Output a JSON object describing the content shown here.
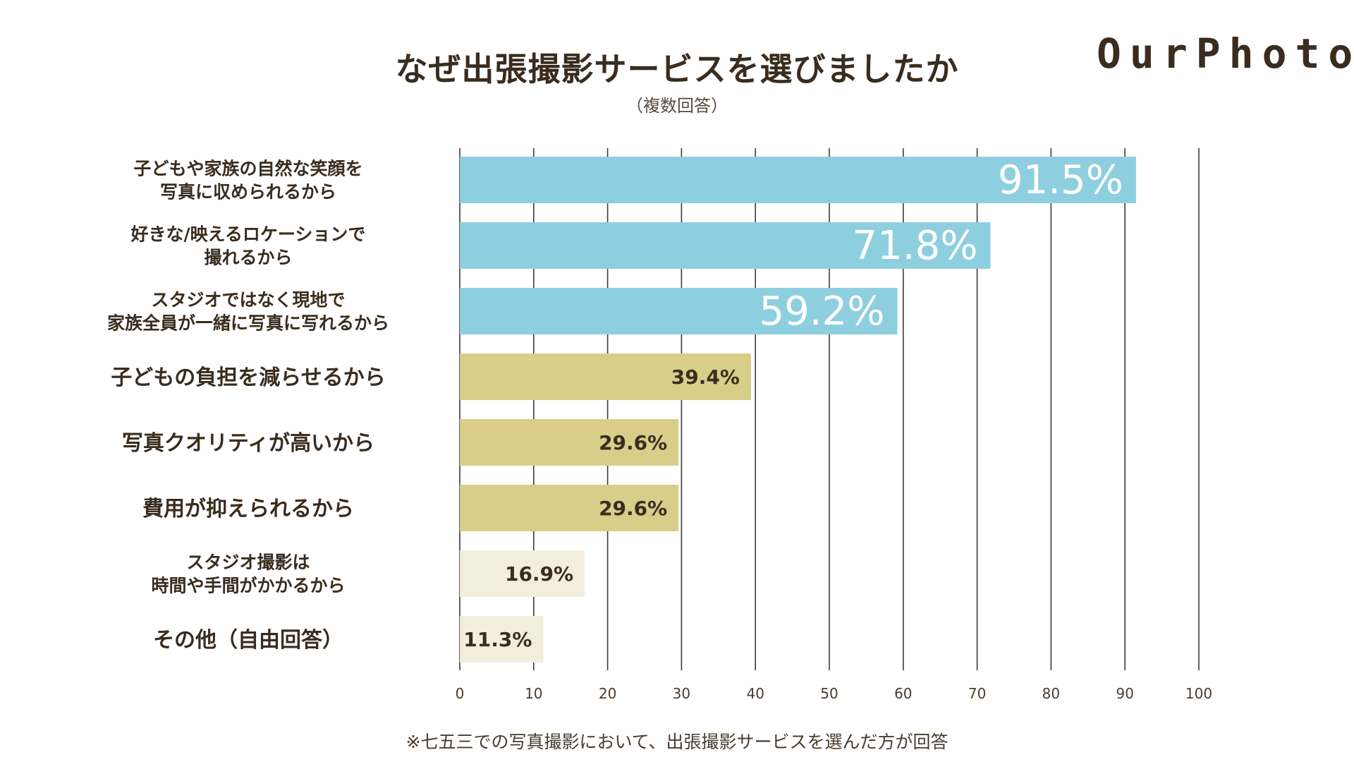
{
  "header": {
    "title": "なぜ出張撮影サービスを選びましたか",
    "subtitle": "（複数回答）",
    "logo": "OurPhoto"
  },
  "footnote": "※七五三での写真撮影において、出張撮影サービスを選んだ方が回答",
  "colors": {
    "top": "#8ecfdf",
    "mid": "#d9cd8a",
    "low": "#f3eedc",
    "grid": "#3a3a3a",
    "text": "#3a2c1e",
    "label_light": "#ffffff",
    "label_dark": "#3a2c1e"
  },
  "chart_data": {
    "type": "bar",
    "orientation": "horizontal",
    "title": "なぜ出張撮影サービスを選びましたか",
    "subtitle": "（複数回答）",
    "xlim": [
      0,
      100
    ],
    "xticks": [
      0,
      10,
      20,
      30,
      40,
      50,
      60,
      70,
      80,
      90,
      100
    ],
    "grid": true,
    "bars": [
      {
        "category_lines": [
          "子どもや家族の自然な笑顔を",
          "写真に収められるから"
        ],
        "value": 91.5,
        "label": "91.5%",
        "group": "top"
      },
      {
        "category_lines": [
          "好きな/映えるロケーションで",
          "撮れるから"
        ],
        "value": 71.8,
        "label": "71.8%",
        "group": "top"
      },
      {
        "category_lines": [
          "スタジオではなく現地で",
          "家族全員が一緒に写真に写れるから"
        ],
        "value": 59.2,
        "label": "59.2%",
        "group": "top"
      },
      {
        "category_lines": [
          "子どもの負担を減らせるから"
        ],
        "value": 39.4,
        "label": "39.4%",
        "group": "mid"
      },
      {
        "category_lines": [
          "写真クオリティが高いから"
        ],
        "value": 29.6,
        "label": "29.6%",
        "group": "mid"
      },
      {
        "category_lines": [
          "費用が抑えられるから"
        ],
        "value": 29.6,
        "label": "29.6%",
        "group": "mid"
      },
      {
        "category_lines": [
          "スタジオ撮影は",
          "時間や手間がかかるから"
        ],
        "value": 16.9,
        "label": "16.9%",
        "group": "low"
      },
      {
        "category_lines": [
          "その他（自由回答）"
        ],
        "value": 11.3,
        "label": "11.3%",
        "group": "low"
      }
    ]
  }
}
